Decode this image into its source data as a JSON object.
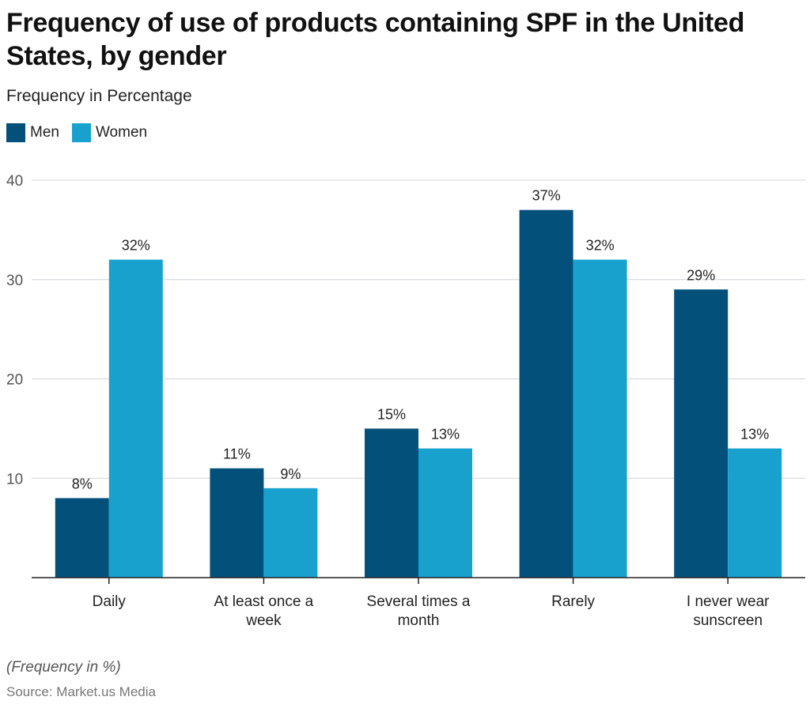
{
  "title": "Frequency of use of products containing SPF in the United States, by gender",
  "subtitle": "Frequency in Percentage",
  "note": "(Frequency in %)",
  "source": "Source: Market.us Media",
  "chart_data": {
    "type": "bar",
    "categories": [
      [
        "Daily"
      ],
      [
        "At least once a",
        "week"
      ],
      [
        "Several times a",
        "month"
      ],
      [
        "Rarely"
      ],
      [
        "I never wear",
        "sunscreen"
      ]
    ],
    "series": [
      {
        "name": "Men",
        "color": "#03517a",
        "values": [
          8,
          11,
          15,
          37,
          29
        ],
        "labels": [
          "8%",
          "11%",
          "15%",
          "37%",
          "29%"
        ]
      },
      {
        "name": "Women",
        "color": "#19a1ce",
        "values": [
          32,
          9,
          13,
          32,
          13
        ],
        "labels": [
          "32%",
          "9%",
          "13%",
          "32%",
          "13%"
        ]
      }
    ],
    "yticks": [
      10,
      20,
      30,
      40
    ],
    "ylim": [
      0,
      40
    ],
    "grid": true,
    "legend": "top-left"
  }
}
